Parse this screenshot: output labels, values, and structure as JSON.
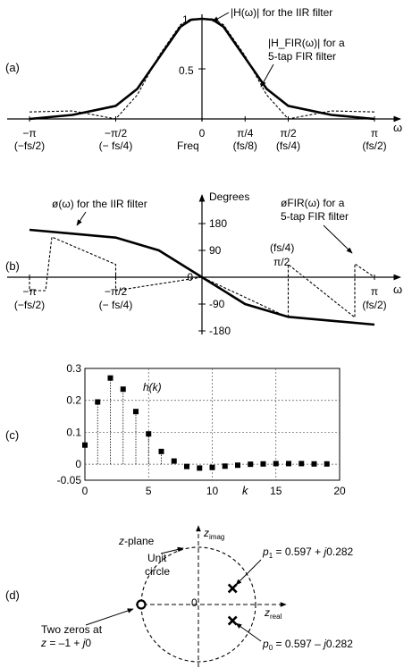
{
  "panel_a": {
    "label": "(a)",
    "iir_label": "|H(ω)| for the IIR filter",
    "fir_label_line1": "|H_FIR(ω)| for a",
    "fir_label_line2": "5-tap FIR filter",
    "y_tick_1": "1",
    "y_tick_05": "0.5",
    "axis_label": "ω",
    "freq_label": "Freq",
    "ticks": [
      {
        "top": "−π",
        "bottom": "(−fs/2)"
      },
      {
        "top": "−π/2",
        "bottom": "(− fs/4)"
      },
      {
        "top": "0",
        "bottom": ""
      },
      {
        "top": "π/4",
        "bottom": "(fs/8)"
      },
      {
        "top": "π/2",
        "bottom": "(fs/4)"
      },
      {
        "top": "π",
        "bottom": "(fs/2)"
      }
    ]
  },
  "panel_b": {
    "label": "(b)",
    "iir_label": "ø(ω) for the IIR filter",
    "fir_label_line1": "øFIR(ω) for a",
    "fir_label_line2": "5-tap FIR filter",
    "degrees_label": "Degrees",
    "y_ticks": [
      "180",
      "90",
      "0",
      "-90",
      "-180"
    ],
    "axis_label": "ω",
    "pi2_top": "(fs/4)",
    "pi2_bottom": "π/2",
    "ticks": [
      {
        "top": "−π",
        "bottom": "(−fs/2)"
      },
      {
        "top": "−π/2",
        "bottom": "(− fs/4)"
      },
      {
        "top": "π",
        "bottom": "(fs/2)"
      }
    ]
  },
  "panel_c": {
    "label": "(c)",
    "series_label": "h(k)",
    "xlabel": "k",
    "y_ticks": [
      "0.3",
      "0.2",
      "0.1",
      "0",
      "-0.05"
    ],
    "x_ticks": [
      "0",
      "5",
      "10",
      "15",
      "20"
    ]
  },
  "panel_d": {
    "label": "(d)",
    "plane_label": "z-plane",
    "unit_circle_line1": "Unit",
    "unit_circle_line2": "circle",
    "imag_label": "zimag",
    "real_label": "zreal",
    "origin_label": "0",
    "p1_label": "p1 = 0.597 + j0.282",
    "p0_label": "p0 = 0.597 – j0.282",
    "zeros_line1": "Two zeros at",
    "zeros_line2": "z = –1 + j0"
  },
  "chart_data": [
    {
      "type": "line",
      "panel": "(a)",
      "x": [
        -3.1416,
        -2.3562,
        -1.5708,
        -1.1781,
        -0.7854,
        -0.3927,
        -0.2,
        0,
        0.2,
        0.3927,
        0.7854,
        1.1781,
        1.5708,
        2.3562,
        3.1416
      ],
      "series": [
        {
          "name": "|H(ω)| for the IIR filter",
          "values": [
            0.0,
            0.04,
            0.13,
            0.3,
            0.61,
            0.92,
            0.99,
            1.0,
            0.99,
            0.92,
            0.61,
            0.3,
            0.13,
            0.04,
            0.0
          ]
        },
        {
          "name": "|HFIR(ω)| for a 5-tap FIR filter",
          "values": [
            0.07,
            0.08,
            0.0,
            0.24,
            0.63,
            0.94,
            1.0,
            1.0,
            1.0,
            0.94,
            0.63,
            0.24,
            0.0,
            0.08,
            0.07
          ]
        }
      ],
      "ylim": [
        0,
        1
      ]
    },
    {
      "type": "line",
      "panel": "(b)",
      "x": [
        -3.1416,
        -2.3562,
        -1.5708,
        -0.7854,
        0,
        0.7854,
        1.5708,
        2.3562,
        3.1416
      ],
      "series": [
        {
          "name": "ø(ω) for the IIR filter",
          "values": [
            159,
            146,
            133,
            90,
            0,
            -90,
            -133,
            -146,
            -159
          ]
        },
        {
          "name": "øFIR(ω) for a 5-tap FIR filter",
          "values": [
            0,
            135,
            43,
            -45,
            0,
            -45,
            43,
            -135,
            0
          ]
        }
      ],
      "ylim": [
        -180,
        180
      ]
    },
    {
      "type": "scatter",
      "panel": "(c)",
      "name": "h(k)",
      "x": [
        0,
        1,
        2,
        3,
        4,
        5,
        6,
        7,
        8,
        9,
        10,
        11,
        12,
        13,
        14,
        15,
        16,
        17,
        18,
        19
      ],
      "values": [
        0.06,
        0.195,
        0.27,
        0.235,
        0.165,
        0.095,
        0.04,
        0.01,
        -0.007,
        -0.012,
        -0.01,
        -0.006,
        -0.003,
        0.0,
        0.001,
        0.002,
        0.002,
        0.002,
        0.001,
        0.001
      ],
      "xlim": [
        0,
        20
      ],
      "ylim": [
        -0.05,
        0.3
      ],
      "grid": true
    },
    {
      "type": "scatter",
      "panel": "(d)",
      "poles": [
        [
          0.597,
          0.282
        ],
        [
          0.597,
          -0.282
        ]
      ],
      "zeros": [
        [
          -1,
          0
        ]
      ],
      "xlim": [
        -1,
        1
      ],
      "ylim": [
        -1,
        1
      ]
    }
  ]
}
